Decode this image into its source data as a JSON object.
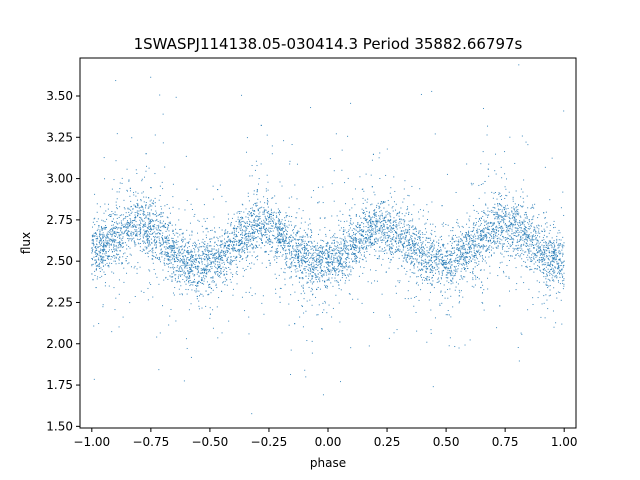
{
  "chart_data": {
    "type": "scatter",
    "title": "1SWASPJ114138.05-030414.3 Period 35882.66797s",
    "xlabel": "phase",
    "ylabel": "flux",
    "xlim": [
      -1.05,
      1.05
    ],
    "ylim": [
      1.49,
      3.73
    ],
    "xticks": [
      -1.0,
      -0.75,
      -0.5,
      -0.25,
      0.0,
      0.25,
      0.5,
      0.75,
      1.0
    ],
    "xtick_labels": [
      "−1.00",
      "−0.75",
      "−0.50",
      "−0.25",
      "0.00",
      "0.25",
      "0.50",
      "0.75",
      "1.00"
    ],
    "yticks": [
      1.5,
      1.75,
      2.0,
      2.25,
      2.5,
      2.75,
      3.0,
      3.25,
      3.5
    ],
    "ytick_labels": [
      "1.50",
      "1.75",
      "2.00",
      "2.25",
      "2.50",
      "2.75",
      "3.00",
      "3.25",
      "3.50"
    ],
    "grid": false,
    "color": "#1f77b4",
    "series": [
      {
        "x": [
          -1.0,
          -0.95,
          -0.9,
          -0.85,
          -0.8,
          -0.75,
          -0.7,
          -0.65,
          -0.6,
          -0.55,
          -0.5,
          -0.45,
          -0.4,
          -0.35,
          -0.3,
          -0.25,
          -0.2,
          -0.15,
          -0.1,
          -0.05,
          0.0,
          0.05,
          0.1,
          0.15,
          0.2,
          0.25,
          0.3,
          0.35,
          0.4,
          0.45,
          0.5,
          0.55,
          0.6,
          0.65,
          0.7,
          0.75,
          0.8,
          0.85,
          0.9,
          0.95,
          1.0
        ],
        "y": [
          2.55,
          2.6,
          2.65,
          2.7,
          2.72,
          2.7,
          2.63,
          2.55,
          2.5,
          2.47,
          2.48,
          2.52,
          2.6,
          2.67,
          2.71,
          2.7,
          2.65,
          2.58,
          2.52,
          2.48,
          2.48,
          2.52,
          2.58,
          2.65,
          2.7,
          2.7,
          2.66,
          2.6,
          2.54,
          2.5,
          2.48,
          2.5,
          2.56,
          2.63,
          2.69,
          2.72,
          2.7,
          2.64,
          2.57,
          2.52,
          2.5
        ]
      }
    ]
  }
}
